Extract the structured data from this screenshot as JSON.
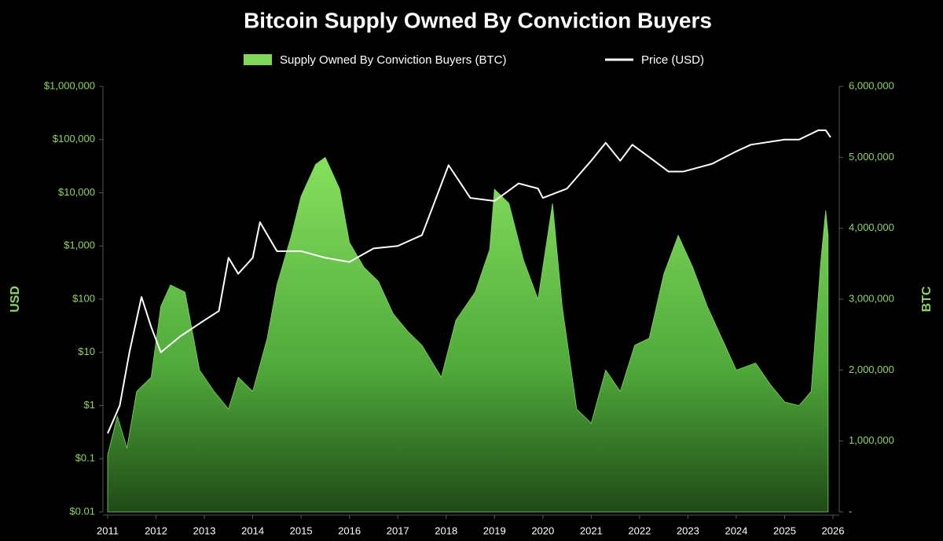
{
  "chart_data": {
    "type": "area_line",
    "title": "Bitcoin Supply Owned By Conviction Buyers",
    "ylabel": "USD",
    "y2label": "BTC",
    "ylog": true,
    "xlim": [
      2011,
      2026
    ],
    "xticks": [
      2011,
      2012,
      2013,
      2014,
      2015,
      2016,
      2017,
      2018,
      2019,
      2020,
      2021,
      2022,
      2023,
      2024,
      2025,
      2026
    ],
    "ylim": [
      0.01,
      1000000
    ],
    "yticks": [
      {
        "value": 0.01,
        "label": "$0.01"
      },
      {
        "value": 0.1,
        "label": "$0.1"
      },
      {
        "value": 1,
        "label": "$1"
      },
      {
        "value": 10,
        "label": "$10"
      },
      {
        "value": 100,
        "label": "$100"
      },
      {
        "value": 1000,
        "label": "$1,000"
      },
      {
        "value": 10000,
        "label": "$10,000"
      },
      {
        "value": 100000,
        "label": "$100,000"
      },
      {
        "value": 1000000,
        "label": "$1,000,000"
      }
    ],
    "y2lim": [
      0,
      6000000
    ],
    "y2ticks": [
      {
        "value": 0,
        "label": "-"
      },
      {
        "value": 1000000,
        "label": "1,000,000"
      },
      {
        "value": 2000000,
        "label": "2,000,000"
      },
      {
        "value": 3000000,
        "label": "3,000,000"
      },
      {
        "value": 4000000,
        "label": "4,000,000"
      },
      {
        "value": 5000000,
        "label": "5,000,000"
      },
      {
        "value": 6000000,
        "label": "6,000,000"
      }
    ],
    "series": [
      {
        "name": "Supply Owned By Conviction Buyers (BTC)",
        "color": "#7fd65a",
        "axis": "y2",
        "kind": "area",
        "x": [
          2011.0,
          2011.2,
          2011.4,
          2011.6,
          2011.9,
          2012.1,
          2012.3,
          2012.6,
          2012.9,
          2013.2,
          2013.5,
          2013.7,
          2014.0,
          2014.3,
          2014.5,
          2014.8,
          2015.0,
          2015.3,
          2015.5,
          2015.8,
          2016.0,
          2016.3,
          2016.6,
          2016.9,
          2017.2,
          2017.5,
          2017.9,
          2018.2,
          2018.6,
          2018.9,
          2019.0,
          2019.3,
          2019.6,
          2019.9,
          2020.2,
          2020.4,
          2020.7,
          2021.0,
          2021.3,
          2021.6,
          2021.9,
          2022.2,
          2022.5,
          2022.8,
          2023.1,
          2023.4,
          2023.7,
          2024.0,
          2024.4,
          2024.7,
          2025.0,
          2025.3,
          2025.55,
          2025.75,
          2025.85,
          2025.9
        ],
        "values": [
          800000,
          1350000,
          900000,
          1700000,
          1900000,
          2900000,
          3200000,
          3100000,
          2000000,
          1700000,
          1450000,
          1900000,
          1700000,
          2450000,
          3200000,
          3900000,
          4450000,
          4900000,
          5000000,
          4550000,
          3800000,
          3450000,
          3250000,
          2800000,
          2550000,
          2350000,
          1900000,
          2700000,
          3100000,
          3700000,
          4550000,
          4350000,
          3550000,
          3000000,
          4350000,
          2900000,
          1450000,
          1250000,
          2000000,
          1700000,
          2350000,
          2450000,
          3350000,
          3900000,
          3450000,
          2900000,
          2450000,
          2000000,
          2100000,
          1800000,
          1550000,
          1500000,
          1700000,
          3550000,
          4250000,
          3900000
        ]
      },
      {
        "name": "Price (USD)",
        "color": "#ffffff",
        "axis": "y",
        "kind": "line",
        "x": [
          2011.0,
          2011.25,
          2011.45,
          2011.7,
          2011.9,
          2012.1,
          2012.5,
          2013.0,
          2013.3,
          2013.5,
          2013.7,
          2014.0,
          2014.15,
          2014.5,
          2015.0,
          2015.5,
          2016.0,
          2016.5,
          2017.0,
          2017.5,
          2018.05,
          2018.5,
          2019.0,
          2019.5,
          2019.9,
          2020.0,
          2020.5,
          2021.0,
          2021.3,
          2021.6,
          2021.85,
          2022.3,
          2022.6,
          2022.9,
          2023.5,
          2024.0,
          2024.3,
          2025.0,
          2025.3,
          2025.7,
          2025.85,
          2025.95
        ],
        "values": [
          0.3,
          1,
          10,
          110,
          30,
          10,
          20,
          40,
          60,
          600,
          300,
          600,
          2800,
          800,
          800,
          600,
          500,
          900,
          1000,
          1600,
          33000,
          8000,
          7000,
          15000,
          12000,
          8000,
          12000,
          40000,
          87000,
          40000,
          80000,
          40000,
          25000,
          25000,
          35000,
          60000,
          80000,
          100000,
          100000,
          150000,
          150000,
          110000
        ]
      }
    ]
  }
}
